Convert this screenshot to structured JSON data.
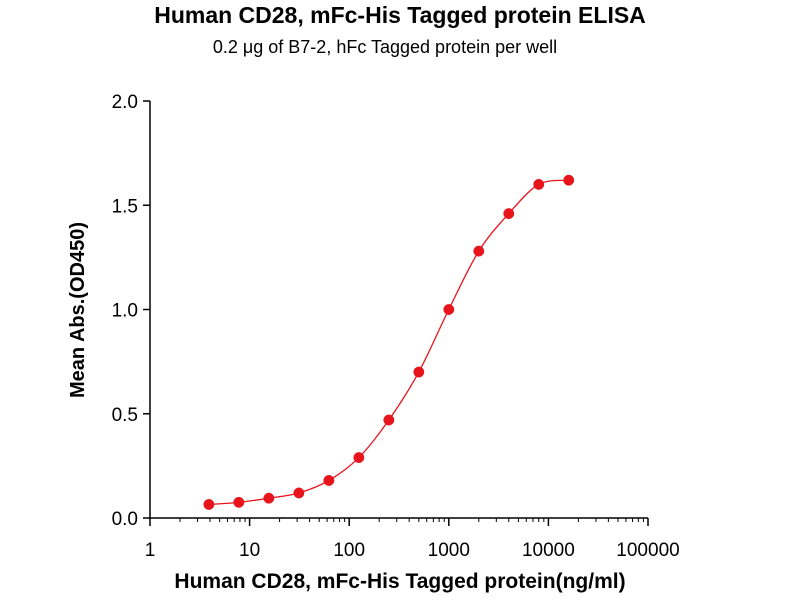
{
  "chart_data": {
    "type": "scatter",
    "title": "Human CD28, mFc-His Tagged protein ELISA",
    "subtitle": "0.2 μg of B7-2, hFc Tagged protein per well",
    "xlabel": "Human CD28, mFc-His Tagged protein(ng/ml)",
    "ylabel": "Mean Abs.(OD450)",
    "xscale": "log",
    "xlim": [
      1,
      100000
    ],
    "ylim": [
      0,
      2.0
    ],
    "x_tick_labels": [
      "1",
      "10",
      "100",
      "1000",
      "10000",
      "100000"
    ],
    "y_tick_labels": [
      "0.0",
      "0.5",
      "1.0",
      "1.5",
      "2.0"
    ],
    "grid": false,
    "series": [
      {
        "x": [
          3.9,
          7.8,
          15.6,
          31.25,
          62.5,
          125,
          250,
          500,
          1000,
          2000,
          4000,
          8000,
          16000
        ],
        "y": [
          0.065,
          0.075,
          0.095,
          0.12,
          0.18,
          0.29,
          0.47,
          0.7,
          1.0,
          1.28,
          1.46,
          1.6,
          1.62
        ],
        "color": "#e8141b",
        "fit": "sigmoid"
      }
    ]
  }
}
